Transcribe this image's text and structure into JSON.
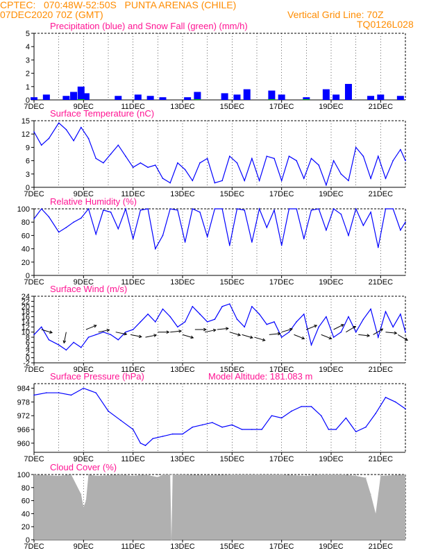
{
  "header": {
    "station_line": "CPTEC:   070:48W-52:50S   PUNTA ARENAS (CHILE)",
    "date_line": "07DEC2020 70Z (GMT)",
    "grid_line": "Vertical Grid Line: 70Z",
    "code": "TQ0126L028"
  },
  "colors": {
    "header_text": "#ff8c00",
    "panel_title": "#ff1493",
    "line": "#0000ff",
    "snow": "#00c800",
    "cloud_fill": "#b0b0b0",
    "wind_arrow": "#000000"
  },
  "x_ticks": [
    "7DEC",
    "9DEC",
    "11DEC",
    "13DEC",
    "15DEC",
    "17DEC",
    "19DEC",
    "21DEC"
  ],
  "chart_data": [
    {
      "id": "precip",
      "type": "bar",
      "title": "Precipitation (blue) and Snow Fall (green) (mm/h)",
      "ylim": [
        0,
        5
      ],
      "yticks": [
        "0",
        "1",
        "2",
        "3",
        "4",
        "5"
      ],
      "x_start": "2020-12-07",
      "x_end": "2020-12-22",
      "series": [
        {
          "name": "Precipitation",
          "points": [
            [
              "2020-12-07",
              0.2
            ],
            [
              "2020-12-07.5",
              0.4
            ],
            [
              "2020-12-08.3",
              0.3
            ],
            [
              "2020-12-08.6",
              0.6
            ],
            [
              "2020-12-08.9",
              1.0
            ],
            [
              "2020-12-09.1",
              0.5
            ],
            [
              "2020-12-10.4",
              0.3
            ],
            [
              "2020-12-11.2",
              0.4
            ],
            [
              "2020-12-11.7",
              0.3
            ],
            [
              "2020-12-12.2",
              0.2
            ],
            [
              "2020-12-13.2",
              0.2
            ],
            [
              "2020-12-13.6",
              0.6
            ],
            [
              "2020-12-14.7",
              0.5
            ],
            [
              "2020-12-15.2",
              0.4
            ],
            [
              "2020-12-15.6",
              0.8
            ],
            [
              "2020-12-16.6",
              0.7
            ],
            [
              "2020-12-17.0",
              0.4
            ],
            [
              "2020-12-18.0",
              0.2
            ],
            [
              "2020-12-18.8",
              0.8
            ],
            [
              "2020-12-19.2",
              0.4
            ],
            [
              "2020-12-19.7",
              1.2
            ],
            [
              "2020-12-20.6",
              0.3
            ],
            [
              "2020-12-21.0",
              0.4
            ],
            [
              "2020-12-21.8",
              0.3
            ]
          ]
        },
        {
          "name": "Snow Fall",
          "points": [
            [
              "2020-12-08.9",
              0.05
            ],
            [
              "2020-12-13.6",
              0.05
            ],
            [
              "2020-12-16.6",
              0.05
            ],
            [
              "2020-12-18.0",
              0.05
            ]
          ]
        }
      ]
    },
    {
      "id": "temp",
      "type": "line",
      "title": "Surface Temperature (nC)",
      "ylim": [
        0,
        15
      ],
      "yticks": [
        "0",
        "3",
        "6",
        "9",
        "12",
        "15"
      ],
      "x": [
        7.0,
        7.3,
        7.6,
        8.0,
        8.3,
        8.6,
        8.9,
        9.2,
        9.5,
        9.8,
        10.1,
        10.4,
        10.7,
        11.0,
        11.3,
        11.6,
        11.9,
        12.2,
        12.5,
        12.8,
        13.1,
        13.4,
        13.7,
        14.0,
        14.3,
        14.6,
        14.9,
        15.2,
        15.5,
        15.8,
        16.1,
        16.4,
        16.7,
        17.0,
        17.3,
        17.6,
        17.9,
        18.2,
        18.5,
        18.8,
        19.1,
        19.4,
        19.7,
        20.0,
        20.3,
        20.6,
        20.9,
        21.2,
        21.5,
        21.8,
        22.0
      ],
      "y": [
        12.5,
        9.5,
        11.0,
        14.5,
        13.0,
        10.5,
        13.5,
        11.0,
        6.5,
        5.5,
        7.5,
        9.5,
        7.0,
        4.5,
        5.5,
        4.5,
        5.0,
        2.0,
        1.0,
        5.5,
        4.0,
        1.5,
        5.5,
        6.5,
        1.0,
        1.5,
        7.0,
        5.5,
        1.5,
        6.5,
        1.5,
        7.0,
        6.5,
        1.5,
        7.0,
        6.0,
        2.0,
        6.5,
        5.0,
        0.5,
        6.0,
        3.0,
        1.5,
        9.0,
        7.0,
        2.0,
        7.0,
        2.0,
        6.0,
        8.5,
        6.0
      ]
    },
    {
      "id": "rh",
      "type": "line",
      "title": "Relative Humidity (%)",
      "ylim": [
        0,
        100
      ],
      "yticks": [
        "0",
        "20",
        "40",
        "60",
        "80",
        "100"
      ],
      "x": [
        7.0,
        7.3,
        7.6,
        8.0,
        8.3,
        8.6,
        8.9,
        9.2,
        9.5,
        9.8,
        10.1,
        10.4,
        10.7,
        11.0,
        11.3,
        11.6,
        11.9,
        12.2,
        12.5,
        12.8,
        13.1,
        13.4,
        13.7,
        14.0,
        14.3,
        14.6,
        14.9,
        15.2,
        15.5,
        15.8,
        16.1,
        16.4,
        16.7,
        17.0,
        17.3,
        17.6,
        17.9,
        18.2,
        18.5,
        18.8,
        19.1,
        19.4,
        19.7,
        20.0,
        20.3,
        20.6,
        20.9,
        21.2,
        21.5,
        21.8,
        22.0
      ],
      "y": [
        85,
        100,
        88,
        65,
        72,
        80,
        86,
        100,
        62,
        98,
        95,
        70,
        100,
        55,
        98,
        100,
        40,
        60,
        100,
        98,
        50,
        100,
        95,
        58,
        100,
        100,
        45,
        100,
        98,
        50,
        100,
        72,
        98,
        45,
        100,
        100,
        55,
        98,
        100,
        68,
        100,
        92,
        60,
        100,
        75,
        95,
        42,
        100,
        100,
        68,
        80
      ]
    },
    {
      "id": "wind",
      "type": "line",
      "title": "Surface Wind (m/s)",
      "ylim": [
        -2,
        24
      ],
      "yticks": [
        "-2",
        "0",
        "2",
        "4",
        "6",
        "8",
        "10",
        "12",
        "14",
        "16",
        "18",
        "20",
        "22",
        "24"
      ],
      "x": [
        7.0,
        7.3,
        7.6,
        8.0,
        8.3,
        8.6,
        8.9,
        9.2,
        9.5,
        9.8,
        10.1,
        10.4,
        10.7,
        11.0,
        11.3,
        11.6,
        11.9,
        12.2,
        12.5,
        12.8,
        13.1,
        13.4,
        13.7,
        14.0,
        14.3,
        14.6,
        14.9,
        15.2,
        15.5,
        15.8,
        16.1,
        16.4,
        16.7,
        17.0,
        17.3,
        17.6,
        17.9,
        18.2,
        18.5,
        18.8,
        19.1,
        19.4,
        19.7,
        20.0,
        20.3,
        20.6,
        20.9,
        21.2,
        21.5,
        21.8,
        22.0
      ],
      "y": [
        9,
        12,
        7,
        5,
        3,
        6,
        4,
        8,
        9,
        10,
        9,
        7,
        10,
        11,
        14,
        17,
        14,
        19,
        16,
        12,
        14,
        20,
        17,
        14,
        15,
        20,
        21,
        15,
        12,
        20,
        17,
        13,
        14,
        8,
        10,
        14,
        17,
        5,
        12,
        16,
        8,
        10,
        16,
        10,
        15,
        19,
        8,
        18,
        12,
        17,
        10
      ],
      "arrows": [
        [
          7.3,
          11,
          1,
          -0.3
        ],
        [
          8.3,
          10,
          -0.2,
          -1
        ],
        [
          9.1,
          11,
          1,
          0.4
        ],
        [
          9.6,
          10,
          1,
          0.2
        ],
        [
          10.3,
          10,
          1,
          -0.2
        ],
        [
          10.9,
          9,
          1,
          -0.2
        ],
        [
          11.5,
          8,
          1,
          0.2
        ],
        [
          12.0,
          10,
          1,
          0
        ],
        [
          12.5,
          10,
          1,
          0.1
        ],
        [
          13.0,
          9,
          1,
          -0.3
        ],
        [
          13.5,
          11,
          1,
          0
        ],
        [
          13.9,
          10,
          1,
          0.2
        ],
        [
          14.4,
          11,
          1,
          0.1
        ],
        [
          14.9,
          10,
          1,
          -0.3
        ],
        [
          15.4,
          9,
          1,
          -0.3
        ],
        [
          15.9,
          8,
          1,
          -0.3
        ],
        [
          16.5,
          9,
          1,
          0.1
        ],
        [
          17.0,
          10,
          1,
          0.3
        ],
        [
          17.5,
          9,
          1,
          -0.4
        ],
        [
          18.0,
          11,
          1,
          0.4
        ],
        [
          18.6,
          9,
          1,
          -0.4
        ],
        [
          19.1,
          11,
          1,
          0.5
        ],
        [
          19.6,
          10,
          1,
          0.6
        ],
        [
          20.1,
          9,
          1,
          -0.1
        ],
        [
          20.7,
          9,
          1,
          0.6
        ],
        [
          21.2,
          10,
          1,
          -0.1
        ],
        [
          21.7,
          9,
          1,
          -0.6
        ]
      ]
    },
    {
      "id": "pres",
      "type": "line",
      "title": "Surface Pressure (hPa)",
      "annotation": "Model Altitude: 181.083 m",
      "ylim": [
        956,
        986
      ],
      "yticks": [
        "960",
        "966",
        "972",
        "978",
        "984"
      ],
      "x": [
        7.0,
        7.5,
        8.0,
        8.5,
        9.0,
        9.5,
        10.0,
        10.5,
        11.0,
        11.3,
        11.5,
        11.8,
        12.2,
        12.6,
        13.0,
        13.4,
        13.8,
        14.2,
        14.6,
        15.0,
        15.4,
        15.8,
        16.2,
        16.6,
        17.0,
        17.4,
        17.8,
        18.2,
        18.6,
        18.9,
        19.2,
        19.6,
        20.0,
        20.4,
        20.8,
        21.2,
        21.6,
        22.0
      ],
      "y": [
        981,
        982,
        982,
        981,
        984,
        982,
        974,
        970,
        966,
        960,
        959,
        962,
        963,
        964,
        964,
        967,
        968,
        969,
        967,
        968,
        966,
        966,
        966,
        972,
        971,
        974,
        976,
        976,
        972,
        966,
        966,
        971,
        965,
        967,
        973,
        980,
        978,
        975
      ]
    },
    {
      "id": "cloud",
      "type": "area",
      "title": "Cloud Cover (%)",
      "ylim": [
        0,
        100
      ],
      "yticks": [
        "0",
        "20",
        "40",
        "60",
        "80",
        "100"
      ],
      "x": [
        7.0,
        7.5,
        8.0,
        8.5,
        8.9,
        9.0,
        9.1,
        9.2,
        9.5,
        10.0,
        10.5,
        11.0,
        11.5,
        12.0,
        12.2,
        12.5,
        12.55,
        12.6,
        13.0,
        14.0,
        15.0,
        16.0,
        17.0,
        18.0,
        18.5,
        19.0,
        19.5,
        20.0,
        20.4,
        20.6,
        20.8,
        21.0,
        21.5,
        22.0
      ],
      "y": [
        100,
        99,
        98,
        100,
        70,
        50,
        60,
        100,
        98,
        99,
        100,
        98,
        100,
        96,
        100,
        100,
        0,
        100,
        100,
        99,
        100,
        100,
        100,
        98,
        100,
        100,
        100,
        98,
        95,
        70,
        40,
        98,
        99,
        100
      ]
    }
  ]
}
